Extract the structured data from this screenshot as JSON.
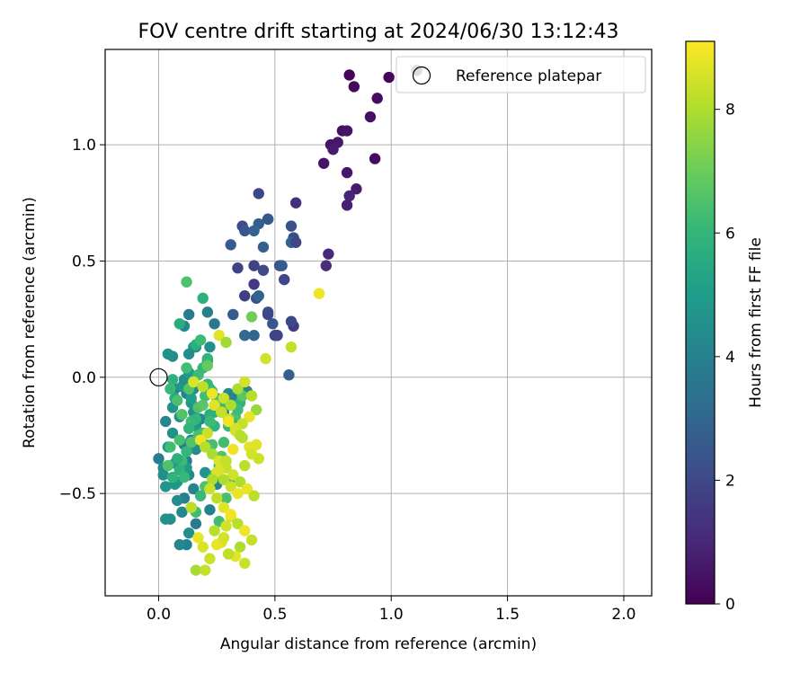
{
  "chart_data": {
    "type": "scatter",
    "title": "FOV centre drift starting at 2024/06/30 13:12:43",
    "xlabel": "Angular distance from reference (arcmin)",
    "ylabel": "Rotation from reference (arcmin)",
    "xlim": [
      -0.23,
      2.12
    ],
    "ylim": [
      -0.94,
      1.41
    ],
    "xticks": [
      0.0,
      0.5,
      1.0,
      1.5,
      2.0
    ],
    "xtick_labels": [
      "0.0",
      "0.5",
      "1.0",
      "1.5",
      "2.0"
    ],
    "yticks": [
      -0.5,
      0.0,
      0.5,
      1.0
    ],
    "ytick_labels": [
      "−0.5",
      "0.0",
      "0.5",
      "1.0"
    ],
    "grid": true,
    "legend": {
      "position": "top-right",
      "entries": [
        "Reference platepar"
      ]
    },
    "reference": {
      "x": 0.0,
      "y": 0.0,
      "label": "Reference platepar",
      "edgecolor": "#000000"
    },
    "colorbar": {
      "label": "Hours from first FF file",
      "min": 0,
      "max": 9.1,
      "ticks": [
        0,
        2,
        4,
        6,
        8
      ],
      "tick_labels": [
        "0",
        "2",
        "4",
        "6",
        "8"
      ],
      "colormap": "viridis",
      "stops": [
        "#440154",
        "#482878",
        "#3e4989",
        "#31688e",
        "#26828e",
        "#1f9e89",
        "#35b779",
        "#6ece58",
        "#b5de2b",
        "#fde725"
      ]
    },
    "series": [
      {
        "x": [
          0.82,
          0.84,
          0.99,
          1.11,
          0.94,
          0.91,
          0.74,
          0.77,
          0.79,
          0.71,
          0.75,
          0.81,
          0.93,
          0.81,
          0.85,
          0.82,
          0.81,
          0.73,
          0.72
        ],
        "y": [
          1.3,
          1.25,
          1.29,
          1.32,
          1.2,
          1.12,
          1.0,
          1.01,
          1.06,
          0.92,
          0.98,
          1.06,
          0.94,
          0.88,
          0.81,
          0.78,
          0.74,
          0.53,
          0.48
        ],
        "hours": [
          0.1,
          0.2,
          0.1,
          0.1,
          0.3,
          0.4,
          0.5,
          0.6,
          0.4,
          0.5,
          0.7,
          0.5,
          0.3,
          0.6,
          0.7,
          0.9,
          0.8,
          1.1,
          1.2
        ]
      },
      {
        "x": [
          0.59,
          0.43,
          0.57,
          0.47,
          0.36,
          0.37,
          0.31,
          0.43,
          0.41,
          0.47,
          0.45,
          0.52,
          0.58,
          0.57,
          0.59,
          0.41,
          0.45,
          0.53,
          0.54,
          0.34,
          0.41,
          0.42,
          0.43,
          0.37,
          0.47,
          0.5,
          0.58,
          0.51,
          0.47,
          0.49,
          0.41,
          0.32,
          0.37,
          0.51,
          0.57,
          0.56
        ],
        "y": [
          0.75,
          0.79,
          0.65,
          0.68,
          0.65,
          0.63,
          0.57,
          0.66,
          0.63,
          0.68,
          0.56,
          0.48,
          0.6,
          0.58,
          0.58,
          0.48,
          0.46,
          0.48,
          0.42,
          0.47,
          0.4,
          0.34,
          0.35,
          0.35,
          0.28,
          0.18,
          0.22,
          0.18,
          0.27,
          0.23,
          0.18,
          0.27,
          0.18,
          0.18,
          0.24,
          0.01
        ],
        "hours": [
          1.3,
          2.0,
          2.3,
          2.2,
          2.1,
          2.4,
          2.6,
          2.7,
          2.9,
          2.5,
          2.8,
          2.4,
          2.2,
          2.9,
          1.9,
          1.8,
          2.1,
          2.6,
          2.0,
          1.8,
          1.6,
          2.3,
          2.9,
          1.7,
          2.3,
          1.9,
          1.6,
          2.7,
          2.0,
          2.4,
          3.0,
          2.6,
          3.1,
          1.9,
          2.0,
          2.7
        ]
      },
      {
        "x": [
          0.13,
          0.11,
          0.21,
          0.24,
          0.06,
          0.04,
          0.07,
          0.12,
          0.15,
          0.14,
          0.09,
          0.03,
          0.0,
          0.02,
          0.04,
          0.06,
          0.11,
          0.12,
          0.13,
          0.15,
          0.07,
          0.11,
          0.02,
          0.03,
          0.1,
          0.16,
          0.12,
          0.05,
          0.08,
          0.12,
          0.16,
          0.14,
          0.16,
          0.18,
          0.15,
          0.06,
          0.14,
          0.1,
          0.11,
          0.17,
          0.13,
          0.21,
          0.22,
          0.16,
          0.15,
          0.13,
          0.22,
          0.32,
          0.3,
          0.28,
          0.33,
          0.38,
          0.13,
          0.09,
          0.03,
          0.22,
          0.08,
          0.07,
          0.2,
          0.25,
          0.14,
          0.07
        ],
        "y": [
          0.27,
          0.22,
          0.28,
          0.23,
          0.09,
          0.1,
          -0.05,
          -0.07,
          -0.05,
          -0.11,
          -0.17,
          -0.19,
          -0.35,
          -0.39,
          -0.3,
          -0.24,
          -0.29,
          -0.36,
          -0.42,
          -0.48,
          -0.45,
          -0.52,
          -0.42,
          -0.47,
          -0.58,
          -0.63,
          -0.72,
          -0.61,
          -0.45,
          -0.39,
          -0.31,
          -0.27,
          -0.21,
          -0.18,
          -0.15,
          -0.13,
          -0.09,
          -0.04,
          -0.01,
          0.01,
          0.02,
          0.07,
          0.13,
          0.13,
          0.13,
          0.1,
          -0.05,
          -0.09,
          -0.07,
          -0.15,
          -0.12,
          -0.06,
          -0.67,
          -0.72,
          -0.61,
          -0.57,
          -0.53,
          -0.46,
          -0.41,
          -0.46,
          -0.56,
          -0.37
        ],
        "hours": [
          3.8,
          4.2,
          4.0,
          3.7,
          4.4,
          4.6,
          4.1,
          3.9,
          4.3,
          4.7,
          4.5,
          4.2,
          3.9,
          4.4,
          4.8,
          4.6,
          4.0,
          3.8,
          4.3,
          4.1,
          4.9,
          3.9,
          4.5,
          4.7,
          4.2,
          3.8,
          4.0,
          4.6,
          4.8,
          5.0,
          4.4,
          4.1,
          4.9,
          4.3,
          4.6,
          4.7,
          5.1,
          4.8,
          4.5,
          4.2,
          4.9,
          4.0,
          4.6,
          4.3,
          4.7,
          4.4,
          4.1,
          3.9,
          4.2,
          4.0,
          4.3,
          4.1,
          4.5,
          4.2,
          4.6,
          4.0,
          4.4,
          4.8,
          4.7,
          4.2,
          4.9,
          5.0
        ]
      },
      {
        "x": [
          0.12,
          0.19,
          0.09,
          0.16,
          0.18,
          0.19,
          0.21,
          0.12,
          0.07,
          0.06,
          0.05,
          0.08,
          0.1,
          0.14,
          0.13,
          0.16,
          0.17,
          0.2,
          0.21,
          0.19,
          0.22,
          0.24,
          0.17,
          0.14,
          0.12,
          0.1,
          0.09,
          0.11,
          0.05,
          0.04,
          0.06,
          0.08,
          0.09,
          0.13,
          0.15,
          0.17,
          0.2,
          0.23,
          0.25,
          0.27,
          0.24,
          0.22,
          0.19,
          0.2,
          0.27,
          0.28,
          0.3,
          0.33,
          0.35,
          0.36,
          0.34,
          0.32,
          0.23,
          0.26,
          0.18,
          0.16,
          0.2,
          0.24,
          0.26,
          0.29,
          0.31,
          0.26,
          0.4,
          0.21
        ],
        "y": [
          0.41,
          0.34,
          0.23,
          0.14,
          0.16,
          0.04,
          0.08,
          0.04,
          -0.09,
          -0.01,
          -0.05,
          -0.1,
          -0.16,
          -0.19,
          -0.22,
          -0.18,
          -0.13,
          -0.08,
          -0.03,
          -0.12,
          -0.16,
          -0.21,
          -0.25,
          -0.28,
          -0.32,
          -0.36,
          -0.4,
          -0.43,
          -0.3,
          -0.38,
          -0.43,
          -0.35,
          -0.27,
          -0.05,
          -0.02,
          0.01,
          -0.04,
          -0.06,
          -0.09,
          -0.12,
          -0.15,
          -0.19,
          -0.24,
          -0.29,
          -0.34,
          -0.28,
          -0.21,
          -0.17,
          -0.11,
          -0.08,
          -0.14,
          -0.2,
          -0.29,
          -0.38,
          -0.51,
          -0.58,
          -0.47,
          -0.42,
          -0.36,
          -0.52,
          -0.44,
          -0.62,
          0.26,
          0.05
        ],
        "hours": [
          6.5,
          5.8,
          5.6,
          5.7,
          6.2,
          6.0,
          5.9,
          6.3,
          5.5,
          5.8,
          6.1,
          6.4,
          6.6,
          6.2,
          5.9,
          6.0,
          6.5,
          6.3,
          6.1,
          6.7,
          5.7,
          5.9,
          6.4,
          6.6,
          6.0,
          6.2,
          5.8,
          6.1,
          6.3,
          6.5,
          5.9,
          5.7,
          6.4,
          6.6,
          6.8,
          6.2,
          6.0,
          6.3,
          6.5,
          6.1,
          5.8,
          6.2,
          6.4,
          6.0,
          6.6,
          6.3,
          6.1,
          6.5,
          5.9,
          6.7,
          6.2,
          6.0,
          6.4,
          6.2,
          6.1,
          6.3,
          6.5,
          6.0,
          6.2,
          6.4,
          6.1,
          6.3,
          7.1,
          6.9
        ]
      },
      {
        "x": [
          0.69,
          0.57,
          0.46,
          0.26,
          0.29,
          0.15,
          0.19,
          0.23,
          0.28,
          0.31,
          0.34,
          0.37,
          0.4,
          0.42,
          0.39,
          0.36,
          0.33,
          0.3,
          0.27,
          0.24,
          0.21,
          0.18,
          0.2,
          0.23,
          0.26,
          0.29,
          0.32,
          0.35,
          0.38,
          0.41,
          0.43,
          0.39,
          0.36,
          0.33,
          0.3,
          0.27,
          0.25,
          0.28,
          0.31,
          0.34,
          0.37,
          0.4,
          0.42,
          0.35,
          0.32,
          0.29,
          0.26,
          0.23,
          0.22,
          0.25,
          0.28,
          0.31,
          0.34,
          0.37,
          0.4,
          0.19,
          0.16,
          0.22,
          0.17,
          0.14,
          0.29,
          0.35,
          0.33,
          0.2,
          0.27,
          0.24,
          0.31,
          0.37,
          0.3,
          0.25,
          0.28
        ],
        "y": [
          0.36,
          0.13,
          0.08,
          0.18,
          0.15,
          -0.02,
          -0.04,
          -0.07,
          -0.09,
          -0.12,
          -0.05,
          -0.02,
          -0.08,
          -0.14,
          -0.17,
          -0.2,
          -0.23,
          -0.18,
          -0.15,
          -0.12,
          -0.24,
          -0.27,
          -0.3,
          -0.33,
          -0.36,
          -0.39,
          -0.42,
          -0.45,
          -0.48,
          -0.51,
          -0.35,
          -0.3,
          -0.26,
          -0.22,
          -0.19,
          -0.15,
          -0.41,
          -0.44,
          -0.47,
          -0.5,
          -0.38,
          -0.33,
          -0.29,
          -0.25,
          -0.31,
          -0.36,
          -0.4,
          -0.44,
          -0.48,
          -0.52,
          -0.56,
          -0.6,
          -0.63,
          -0.66,
          -0.7,
          -0.73,
          -0.83,
          -0.78,
          -0.69,
          -0.56,
          -0.64,
          -0.73,
          -0.77,
          -0.83,
          -0.71,
          -0.66,
          -0.59,
          -0.8,
          -0.76,
          -0.72,
          -0.69
        ],
        "hours": [
          8.9,
          8.3,
          8.5,
          8.7,
          7.8,
          8.6,
          8.2,
          8.9,
          8.4,
          8.0,
          7.9,
          8.5,
          8.1,
          7.7,
          8.8,
          8.3,
          8.6,
          8.2,
          8.0,
          8.7,
          8.4,
          8.9,
          8.1,
          7.9,
          8.6,
          8.3,
          8.5,
          8.0,
          8.8,
          8.2,
          8.4,
          8.7,
          8.1,
          8.5,
          8.9,
          8.3,
          8.6,
          8.0,
          8.4,
          8.8,
          8.2,
          8.5,
          8.7,
          8.1,
          8.9,
          8.3,
          8.6,
          8.0,
          8.4,
          8.2,
          8.7,
          8.5,
          8.1,
          8.9,
          8.3,
          8.6,
          7.9,
          8.4,
          8.8,
          8.2,
          8.5,
          8.0,
          8.7,
          8.3,
          8.6,
          8.1,
          8.9,
          8.4,
          8.2,
          8.8,
          8.5
        ]
      }
    ]
  }
}
